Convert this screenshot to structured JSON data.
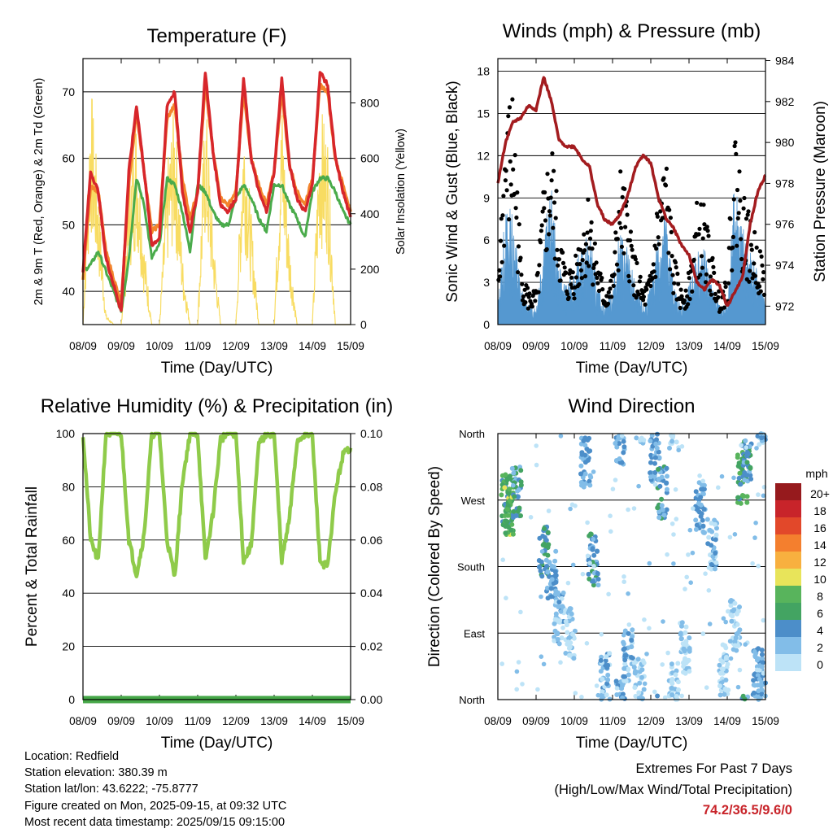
{
  "colors": {
    "temp_2m": "#d7262b",
    "temp_9m": "#f3852d",
    "dewpoint": "#4aab4b",
    "solar": "#f8dc62",
    "wind": "#5598d0",
    "gust": "#000000",
    "pressure": "#a31c1f",
    "humidity": "#8fcb4a",
    "precip": "#46a748"
  },
  "info": {
    "location": "Location: Redfield",
    "elevation": "Station elevation: 380.39 m",
    "latlon": "Station lat/lon: 43.6222; -75.8777",
    "created": "Figure created on Mon, 2025-09-15, at 09:32 UTC",
    "recent": "Most recent data timestamp: 2025/09/15 09:15:00"
  },
  "extremes": {
    "line1": "Extremes For Past 7 Days",
    "line2": "(High/Low/Max Wind/Total Precipitation)",
    "values": "74.2/36.5/9.6/0"
  },
  "chart_data": [
    {
      "type": "line",
      "title": "Temperature (F)",
      "xlabel": "Time (Day/UTC)",
      "ylabel": "2m & 9m T (Red, Orange) & 2m Td (Green)",
      "y2label": "Solar Insolation (Yellow)",
      "x_ticks": [
        "08/09",
        "09/09",
        "10/09",
        "11/09",
        "12/09",
        "13/09",
        "14/09",
        "15/09"
      ],
      "ylim": [
        35,
        75
      ],
      "y_ticks": [
        40,
        50,
        60,
        70
      ],
      "y2lim": [
        0,
        960
      ],
      "y2_ticks": [
        0,
        200,
        400,
        600,
        800
      ],
      "grid": true,
      "x_days": [
        0,
        0.2,
        0.4,
        0.6,
        0.8,
        1.0,
        1.2,
        1.4,
        1.6,
        1.8,
        2.0,
        2.2,
        2.4,
        2.6,
        2.8,
        3.0,
        3.2,
        3.4,
        3.6,
        3.8,
        4.0,
        4.2,
        4.4,
        4.6,
        4.8,
        5.0,
        5.2,
        5.4,
        5.6,
        5.8,
        6.0,
        6.2,
        6.4,
        6.6,
        6.8,
        7.0
      ],
      "series": [
        {
          "name": "2m T",
          "values": [
            43,
            58,
            55,
            45,
            41,
            37,
            58,
            68,
            58,
            47,
            48,
            68,
            70,
            55,
            49,
            55,
            73,
            61,
            53,
            52,
            54,
            72,
            60,
            55,
            52,
            58,
            72,
            59,
            54,
            52,
            56,
            73,
            71,
            60,
            55,
            51
          ]
        },
        {
          "name": "9m T",
          "values": [
            42,
            56,
            55,
            46,
            42,
            38,
            56,
            67,
            58,
            49,
            50,
            66,
            68,
            57,
            51,
            55,
            71,
            61,
            54,
            53,
            55,
            70,
            60,
            56,
            53,
            58,
            70,
            59,
            55,
            53,
            57,
            71,
            70,
            60,
            56,
            52
          ]
        },
        {
          "name": "2m Td",
          "values": [
            43,
            44,
            46,
            43,
            40,
            37,
            45,
            57,
            53,
            45,
            47,
            57,
            56,
            52,
            46,
            56,
            55,
            52,
            50,
            50,
            54,
            56,
            54,
            51,
            49,
            56,
            56,
            53,
            51,
            48,
            55,
            57,
            57,
            55,
            52,
            50
          ]
        },
        {
          "name": "Solar",
          "values": [
            0,
            910,
            500,
            40,
            0,
            0,
            520,
            780,
            300,
            0,
            0,
            580,
            820,
            250,
            0,
            0,
            860,
            350,
            0,
            0,
            0,
            820,
            400,
            0,
            0,
            0,
            840,
            300,
            0,
            0,
            0,
            800,
            700,
            0,
            0,
            0
          ]
        }
      ]
    },
    {
      "type": "scatter",
      "title": "Winds (mph) & Pressure (mb)",
      "xlabel": "Time (Day/UTC)",
      "ylabel": "Sonic Wind & Gust (Blue, Black)",
      "y2label": "Station Pressure (Maroon)",
      "x_ticks": [
        "08/09",
        "09/09",
        "10/09",
        "11/09",
        "12/09",
        "13/09",
        "14/09",
        "15/09"
      ],
      "ylim": [
        0,
        18.9
      ],
      "y_ticks": [
        0,
        3,
        6,
        9,
        12,
        15,
        18
      ],
      "y2lim": [
        971.1,
        984.1
      ],
      "y2_ticks": [
        972,
        974,
        976,
        978,
        980,
        982,
        984
      ],
      "grid": true,
      "x_days": [
        0,
        0.2,
        0.4,
        0.6,
        0.8,
        1.0,
        1.2,
        1.4,
        1.6,
        1.8,
        2.0,
        2.2,
        2.4,
        2.6,
        2.8,
        3.0,
        3.2,
        3.4,
        3.6,
        3.8,
        4.0,
        4.2,
        4.4,
        4.6,
        4.8,
        5.0,
        5.2,
        5.4,
        5.6,
        5.8,
        6.0,
        6.2,
        6.4,
        6.6,
        6.8,
        7.0
      ],
      "series": [
        {
          "name": "Sonic Wind",
          "values": [
            1,
            6,
            6,
            2,
            1,
            1,
            5,
            7,
            3,
            2,
            3,
            4,
            5,
            2,
            1,
            2,
            5,
            4,
            2,
            1,
            2,
            5,
            6,
            2,
            1,
            2,
            4,
            4,
            2,
            1,
            1,
            8,
            5,
            4,
            3,
            1
          ]
        },
        {
          "name": "Gust",
          "values": [
            3,
            12,
            14,
            4,
            2,
            2,
            8,
            11,
            6,
            3,
            4,
            6,
            8,
            4,
            2,
            3,
            9,
            7,
            4,
            2,
            3,
            8,
            10,
            4,
            2,
            3,
            7,
            7,
            4,
            2,
            3,
            12,
            8,
            6,
            5,
            3
          ]
        },
        {
          "name": "Pressure",
          "values": [
            978.0,
            980.0,
            981.0,
            981.2,
            981.8,
            981.6,
            983.2,
            982.0,
            980.1,
            979.8,
            979.8,
            979.2,
            978.8,
            977.0,
            976.2,
            976.0,
            976.5,
            977.4,
            978.8,
            979.4,
            979.0,
            977.3,
            976.3,
            975.8,
            975.0,
            974.5,
            973.2,
            972.8,
            973.3,
            973.0,
            972.0,
            972.7,
            973.4,
            976.0,
            977.6,
            978.4
          ]
        }
      ]
    },
    {
      "type": "line",
      "title": "Relative Humidity (%) & Precipitation (in)",
      "xlabel": "Time (Day/UTC)",
      "ylabel": "Percent & Total Rainfall",
      "x_ticks": [
        "08/09",
        "09/09",
        "10/09",
        "11/09",
        "12/09",
        "13/09",
        "14/09",
        "15/09"
      ],
      "ylim": [
        0,
        100
      ],
      "y_ticks": [
        0,
        20,
        40,
        60,
        80,
        100
      ],
      "y2lim": [
        0,
        0.1
      ],
      "y2_ticks": [
        "0.00",
        "0.02",
        "0.04",
        "0.06",
        "0.08",
        "0.10"
      ],
      "grid": true,
      "x_days": [
        0,
        0.2,
        0.4,
        0.6,
        0.8,
        1.0,
        1.2,
        1.4,
        1.6,
        1.8,
        2.0,
        2.2,
        2.4,
        2.6,
        2.8,
        3.0,
        3.2,
        3.4,
        3.6,
        3.8,
        4.0,
        4.2,
        4.4,
        4.6,
        4.8,
        5.0,
        5.2,
        5.4,
        5.6,
        5.8,
        6.0,
        6.2,
        6.4,
        6.6,
        6.8,
        7.0
      ],
      "series": [
        {
          "name": "RH",
          "values": [
            100,
            60,
            52,
            100,
            100,
            100,
            60,
            47,
            62,
            100,
            100,
            60,
            46,
            82,
            100,
            100,
            52,
            70,
            98,
            100,
            100,
            52,
            58,
            96,
            100,
            100,
            52,
            68,
            97,
            100,
            99,
            52,
            50,
            78,
            92,
            95
          ]
        },
        {
          "name": "Precip",
          "values": [
            0,
            0,
            0,
            0,
            0,
            0,
            0,
            0,
            0,
            0,
            0,
            0,
            0,
            0,
            0,
            0,
            0,
            0,
            0,
            0,
            0,
            0,
            0,
            0,
            0,
            0,
            0,
            0,
            0,
            0,
            0,
            0,
            0,
            0,
            0,
            0
          ]
        }
      ]
    },
    {
      "type": "scatter",
      "title": "Wind Direction",
      "xlabel": "Time (Day/UTC)",
      "ylabel": "Direction (Colored By Speed)",
      "x_ticks": [
        "08/09",
        "09/09",
        "10/09",
        "11/09",
        "12/09",
        "13/09",
        "14/09",
        "15/09"
      ],
      "ylim": [
        0,
        360
      ],
      "y_ticks": [
        "North",
        "East",
        "South",
        "West",
        "North"
      ],
      "grid": true,
      "legend_title": "mph",
      "legend_labels": [
        "0",
        "2",
        "4",
        "6",
        "8",
        "10",
        "12",
        "14",
        "16",
        "18",
        "20+"
      ],
      "legend_colors": [
        "#bde3f7",
        "#82bde8",
        "#4c8ec9",
        "#43a462",
        "#58b45c",
        "#e8e45a",
        "#f8b03f",
        "#f47f2e",
        "#e2482a",
        "#c8242a",
        "#961a1d"
      ],
      "x_days": [
        0.2,
        0.3,
        0.5,
        1.2,
        1.4,
        1.6,
        1.9,
        2.3,
        2.5,
        2.8,
        3.2,
        3.4,
        3.7,
        4.1,
        4.3,
        4.6,
        4.9,
        5.3,
        5.6,
        5.9,
        6.2,
        6.4,
        6.5,
        6.8,
        6.9
      ],
      "series": [
        {
          "name": "Direction",
          "values": [
            270,
            255,
            280,
            200,
            170,
            110,
            90,
            320,
            190,
            30,
            350,
            60,
            20,
            330,
            280,
            15,
            70,
            260,
            210,
            40,
            100,
            300,
            330,
            35,
            20
          ]
        },
        {
          "name": "Speed",
          "values": [
            6,
            8,
            4,
            5,
            3,
            2,
            1,
            3,
            4,
            2,
            3,
            2,
            1,
            3,
            4,
            1,
            1,
            3,
            2,
            1,
            1,
            6,
            4,
            3,
            2
          ]
        }
      ]
    }
  ]
}
